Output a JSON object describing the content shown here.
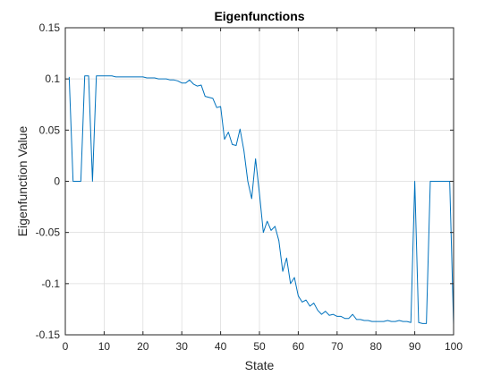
{
  "chart_data": {
    "type": "line",
    "title": "Eigenfunctions",
    "xlabel": "State",
    "ylabel": "Eigenfunction Value",
    "xlim": [
      0,
      100
    ],
    "ylim": [
      -0.15,
      0.15
    ],
    "xticks": [
      0,
      10,
      20,
      30,
      40,
      50,
      60,
      70,
      80,
      90,
      100
    ],
    "yticks": [
      -0.15,
      -0.1,
      -0.05,
      0,
      0.05,
      0.1,
      0.15
    ],
    "ytick_labels": [
      "-0.15",
      "-0.1",
      "-0.05",
      "0",
      "0.05",
      "0.1",
      "0.15"
    ],
    "grid": true,
    "box": true,
    "line_color": "#0072BD",
    "axis_color": "#262626",
    "grid_color": "#dcdcdc",
    "series": [
      {
        "x": [
          1,
          2,
          3,
          4,
          5,
          6,
          7,
          8,
          9,
          10,
          11,
          12,
          13,
          14,
          15,
          16,
          17,
          18,
          19,
          20,
          21,
          22,
          23,
          24,
          25,
          26,
          27,
          28,
          29,
          30,
          31,
          32,
          33,
          34,
          35,
          36,
          37,
          38,
          39,
          40,
          41,
          42,
          43,
          44,
          45,
          46,
          47,
          48,
          49,
          50,
          51,
          52,
          53,
          54,
          55,
          56,
          57,
          58,
          59,
          60,
          61,
          62,
          63,
          64,
          65,
          66,
          67,
          68,
          69,
          70,
          71,
          72,
          73,
          74,
          75,
          76,
          77,
          78,
          79,
          80,
          81,
          82,
          83,
          84,
          85,
          86,
          87,
          88,
          89,
          90,
          91,
          92,
          93,
          94,
          95,
          96,
          97,
          98,
          99,
          100
        ],
        "y": [
          0.102,
          0,
          0,
          0,
          0.103,
          0.103,
          0,
          0.103,
          0.103,
          0.103,
          0.103,
          0.103,
          0.102,
          0.102,
          0.102,
          0.102,
          0.102,
          0.102,
          0.102,
          0.102,
          0.101,
          0.101,
          0.101,
          0.1,
          0.1,
          0.1,
          0.099,
          0.099,
          0.098,
          0.096,
          0.096,
          0.099,
          0.095,
          0.093,
          0.094,
          0.083,
          0.082,
          0.081,
          0.072,
          0.073,
          0.041,
          0.048,
          0.036,
          0.035,
          0.051,
          0.03,
          0.0,
          -0.017,
          0.022,
          -0.012,
          -0.05,
          -0.039,
          -0.048,
          -0.044,
          -0.058,
          -0.088,
          -0.075,
          -0.1,
          -0.094,
          -0.112,
          -0.118,
          -0.116,
          -0.122,
          -0.119,
          -0.126,
          -0.13,
          -0.127,
          -0.131,
          -0.13,
          -0.132,
          -0.132,
          -0.134,
          -0.134,
          -0.13,
          -0.135,
          -0.135,
          -0.136,
          -0.136,
          -0.137,
          -0.137,
          -0.137,
          -0.137,
          -0.136,
          -0.137,
          -0.137,
          -0.136,
          -0.137,
          -0.137,
          -0.138,
          0,
          -0.138,
          -0.139,
          -0.139,
          0,
          0,
          0,
          0,
          0,
          0,
          -0.14
        ]
      }
    ]
  }
}
